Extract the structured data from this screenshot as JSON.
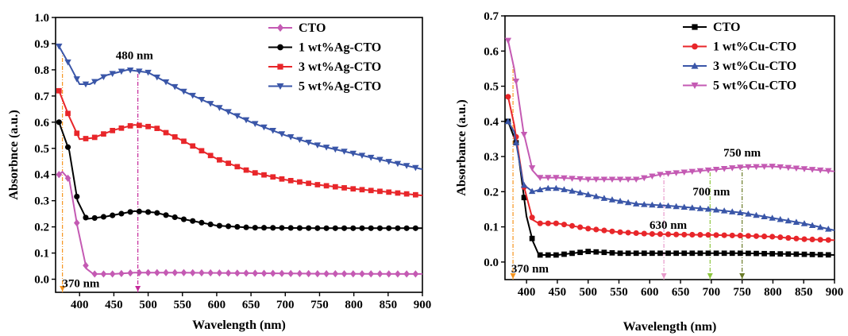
{
  "chart_data": [
    {
      "type": "line",
      "title": "",
      "xlabel": "Wavelength (nm)",
      "ylabel": "Absorbnce (a.u.)",
      "xlim": [
        365,
        900
      ],
      "ylim": [
        -0.05,
        1.0
      ],
      "xticks": [
        400,
        450,
        500,
        550,
        600,
        650,
        700,
        750,
        800,
        850,
        900
      ],
      "yticks": [
        0.0,
        0.1,
        0.2,
        0.3,
        0.4,
        0.5,
        0.6,
        0.7,
        0.8,
        0.9,
        1.0
      ],
      "legend_position": "top-right",
      "grid": false,
      "series": [
        {
          "name": "CTO",
          "color": "#c45ab3",
          "marker": "diamond",
          "points": [
            [
              370,
              0.4
            ],
            [
              375,
              0.41
            ],
            [
              385,
              0.38
            ],
            [
              397,
              0.2
            ],
            [
              410,
              0.04
            ],
            [
              420,
              0.02
            ],
            [
              450,
              0.02
            ],
            [
              480,
              0.025
            ],
            [
              550,
              0.025
            ],
            [
              650,
              0.023
            ],
            [
              750,
              0.021
            ],
            [
              900,
              0.02
            ]
          ]
        },
        {
          "name": "1 wt%Ag-CTO",
          "color": "#000000",
          "marker": "circle",
          "points": [
            [
              370,
              0.6
            ],
            [
              385,
              0.49
            ],
            [
              397,
              0.3
            ],
            [
              410,
              0.23
            ],
            [
              440,
              0.24
            ],
            [
              480,
              0.26
            ],
            [
              510,
              0.255
            ],
            [
              550,
              0.23
            ],
            [
              600,
              0.205
            ],
            [
              650,
              0.197
            ],
            [
              750,
              0.195
            ],
            [
              900,
              0.195
            ]
          ]
        },
        {
          "name": "3 wt%Ag-CTO",
          "color": "#e8262a",
          "marker": "square",
          "points": [
            [
              370,
              0.72
            ],
            [
              385,
              0.62
            ],
            [
              400,
              0.535
            ],
            [
              420,
              0.54
            ],
            [
              450,
              0.57
            ],
            [
              480,
              0.59
            ],
            [
              510,
              0.58
            ],
            [
              550,
              0.53
            ],
            [
              600,
              0.46
            ],
            [
              650,
              0.41
            ],
            [
              700,
              0.38
            ],
            [
              750,
              0.36
            ],
            [
              800,
              0.345
            ],
            [
              850,
              0.333
            ],
            [
              900,
              0.32
            ]
          ]
        },
        {
          "name": "5 wt%Ag-CTO",
          "color": "#3a56a8",
          "marker": "triangle-down",
          "points": [
            [
              370,
              0.89
            ],
            [
              385,
              0.82
            ],
            [
              400,
              0.745
            ],
            [
              415,
              0.745
            ],
            [
              440,
              0.78
            ],
            [
              470,
              0.8
            ],
            [
              500,
              0.79
            ],
            [
              550,
              0.72
            ],
            [
              600,
              0.66
            ],
            [
              650,
              0.6
            ],
            [
              700,
              0.55
            ],
            [
              750,
              0.51
            ],
            [
              800,
              0.48
            ],
            [
              850,
              0.45
            ],
            [
              900,
              0.42
            ]
          ]
        }
      ],
      "annotations": [
        {
          "text": "480 nm",
          "x": 480,
          "y": 0.84
        },
        {
          "text": "370 nm",
          "x": 370,
          "y": -0.03
        }
      ],
      "markers": [
        {
          "x": 485,
          "color": "#c4289a"
        },
        {
          "x": 375,
          "color": "#f7941d"
        }
      ]
    },
    {
      "type": "line",
      "title": "",
      "xlabel": "Wavelength (nm)",
      "ylabel": "Absorbance (a.u.)",
      "xlim": [
        365,
        900
      ],
      "ylim": [
        -0.05,
        0.7
      ],
      "xticks": [
        400,
        450,
        500,
        550,
        600,
        650,
        700,
        750,
        800,
        850,
        900
      ],
      "yticks": [
        0.0,
        0.1,
        0.2,
        0.3,
        0.4,
        0.5,
        0.6,
        0.7
      ],
      "legend_position": "top-right",
      "grid": false,
      "series": [
        {
          "name": "CTO",
          "color": "#000000",
          "marker": "square",
          "points": [
            [
              370,
              0.4
            ],
            [
              385,
              0.33
            ],
            [
              400,
              0.13
            ],
            [
              410,
              0.06
            ],
            [
              420,
              0.02
            ],
            [
              450,
              0.02
            ],
            [
              500,
              0.03
            ],
            [
              550,
              0.025
            ],
            [
              650,
              0.025
            ],
            [
              750,
              0.025
            ],
            [
              850,
              0.022
            ],
            [
              900,
              0.02
            ]
          ]
        },
        {
          "name": "1 wt%Cu-CTO",
          "color": "#e8262a",
          "marker": "circle",
          "points": [
            [
              370,
              0.47
            ],
            [
              380,
              0.39
            ],
            [
              395,
              0.22
            ],
            [
              410,
              0.12
            ],
            [
              420,
              0.11
            ],
            [
              450,
              0.11
            ],
            [
              500,
              0.095
            ],
            [
              550,
              0.085
            ],
            [
              600,
              0.08
            ],
            [
              650,
              0.078
            ],
            [
              700,
              0.077
            ],
            [
              750,
              0.075
            ],
            [
              800,
              0.072
            ],
            [
              850,
              0.065
            ],
            [
              900,
              0.062
            ]
          ]
        },
        {
          "name": "3 wt%Cu-CTO",
          "color": "#3a56a8",
          "marker": "triangle-up",
          "points": [
            [
              370,
              0.4
            ],
            [
              380,
              0.37
            ],
            [
              395,
              0.22
            ],
            [
              410,
              0.2
            ],
            [
              430,
              0.21
            ],
            [
              450,
              0.21
            ],
            [
              480,
              0.2
            ],
            [
              530,
              0.18
            ],
            [
              580,
              0.165
            ],
            [
              630,
              0.16
            ],
            [
              700,
              0.15
            ],
            [
              750,
              0.14
            ],
            [
              800,
              0.125
            ],
            [
              850,
              0.11
            ],
            [
              900,
              0.09
            ]
          ]
        },
        {
          "name": "5 wt%Cu-CTO",
          "color": "#c45ab3",
          "marker": "triangle-down",
          "points": [
            [
              370,
              0.63
            ],
            [
              380,
              0.55
            ],
            [
              395,
              0.37
            ],
            [
              410,
              0.26
            ],
            [
              420,
              0.24
            ],
            [
              450,
              0.24
            ],
            [
              500,
              0.235
            ],
            [
              550,
              0.235
            ],
            [
              580,
              0.235
            ],
            [
              620,
              0.25
            ],
            [
              700,
              0.262
            ],
            [
              750,
              0.27
            ],
            [
              800,
              0.272
            ],
            [
              850,
              0.265
            ],
            [
              900,
              0.258
            ]
          ]
        }
      ],
      "annotations": [
        {
          "text": "750 nm",
          "x": 750,
          "y": 0.3
        },
        {
          "text": "700 nm",
          "x": 700,
          "y": 0.19
        },
        {
          "text": "630 nm",
          "x": 630,
          "y": 0.095
        },
        {
          "text": "370 nm",
          "x": 370,
          "y": -0.03
        }
      ],
      "markers": [
        {
          "x": 623,
          "color": "#e89acb"
        },
        {
          "x": 698,
          "color": "#8dc63f"
        },
        {
          "x": 750,
          "color": "#6b7c2a"
        },
        {
          "x": 378,
          "color": "#f7941d"
        }
      ]
    }
  ]
}
